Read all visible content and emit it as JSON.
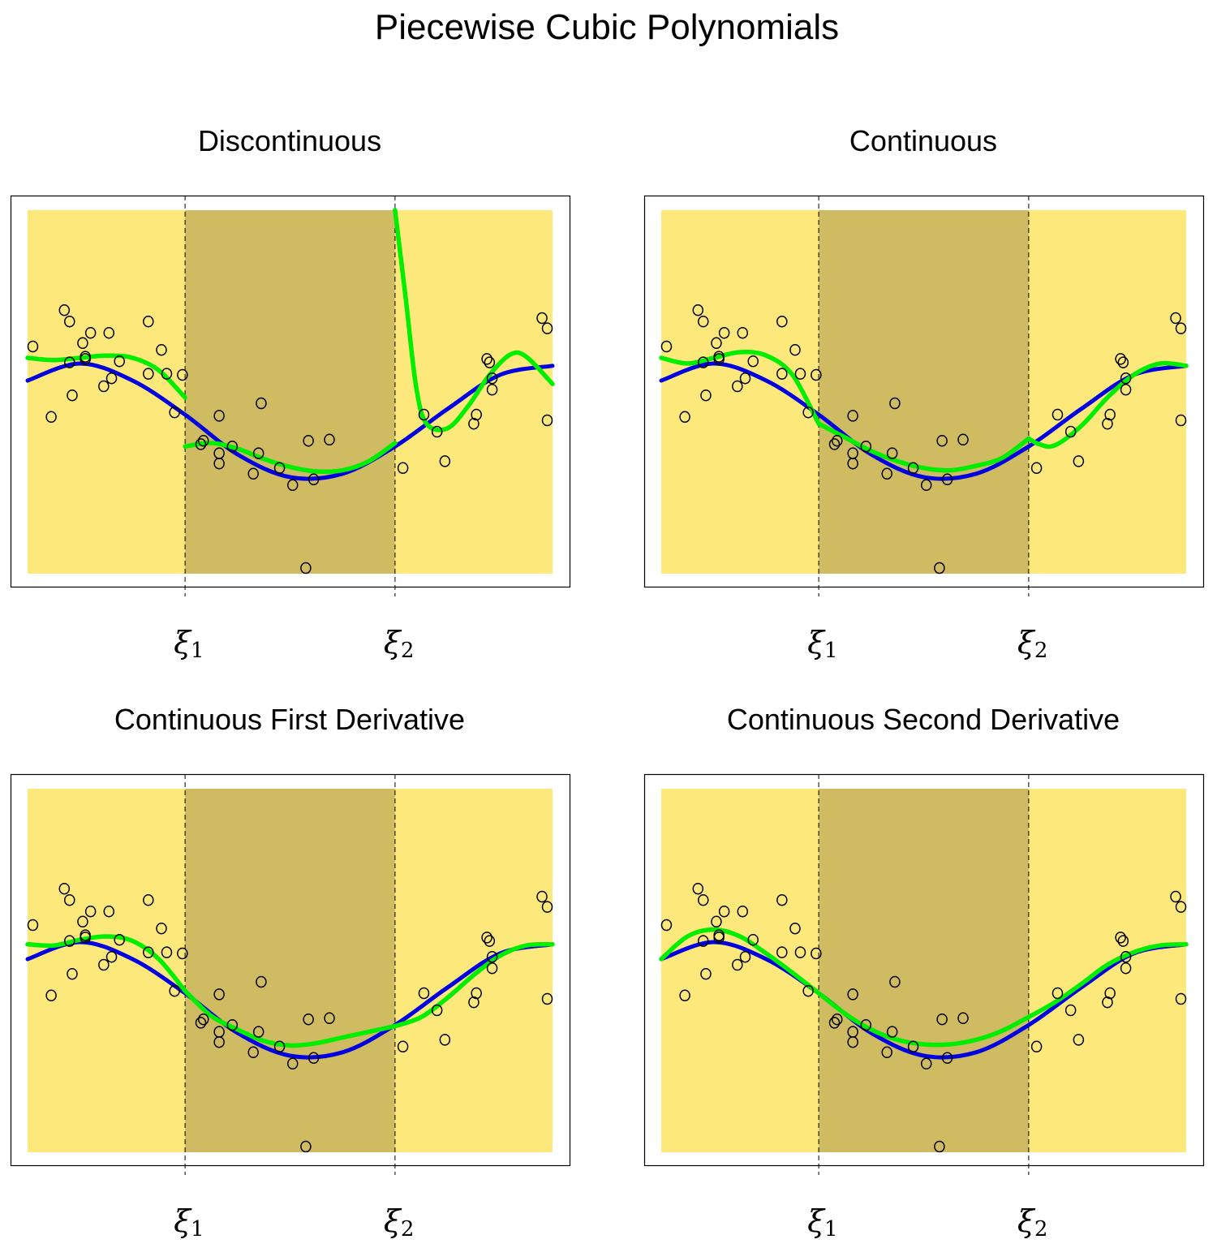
{
  "title": "Piecewise Cubic Polynomials",
  "colors": {
    "outer_region": "#FDE87B",
    "middle_region": "#CFBB62",
    "true_curve": "#0000E0",
    "fitted_curve": "#00EE00",
    "points": "#000000",
    "frame": "#000000"
  },
  "knot_labels": [
    "ξ1",
    "ξ2"
  ],
  "chart_data": [
    {
      "type": "scatter",
      "title": "Discontinuous",
      "xlim": [
        0,
        1
      ],
      "ylim": [
        -1.7,
        1.5
      ],
      "grid": false,
      "knots": [
        0.3,
        0.7
      ],
      "points": [
        [
          0.01,
          0.3
        ],
        [
          0.045,
          -0.32
        ],
        [
          0.07,
          0.62
        ],
        [
          0.08,
          0.52
        ],
        [
          0.08,
          0.16
        ],
        [
          0.085,
          -0.13
        ],
        [
          0.105,
          0.33
        ],
        [
          0.11,
          0.21
        ],
        [
          0.11,
          0.19
        ],
        [
          0.12,
          0.42
        ],
        [
          0.145,
          -0.05
        ],
        [
          0.16,
          0.02
        ],
        [
          0.155,
          0.42
        ],
        [
          0.175,
          0.17
        ],
        [
          0.23,
          0.52
        ],
        [
          0.23,
          0.06
        ],
        [
          0.255,
          0.27
        ],
        [
          0.265,
          0.06
        ],
        [
          0.28,
          -0.28
        ],
        [
          0.295,
          0.05
        ],
        [
          0.33,
          -0.56
        ],
        [
          0.335,
          -0.53
        ],
        [
          0.365,
          -0.31
        ],
        [
          0.365,
          -0.64
        ],
        [
          0.365,
          -0.73
        ],
        [
          0.39,
          -0.58
        ],
        [
          0.44,
          -0.64
        ],
        [
          0.43,
          -0.82
        ],
        [
          0.445,
          -0.2
        ],
        [
          0.48,
          -0.77
        ],
        [
          0.505,
          -0.92
        ],
        [
          0.53,
          -1.65
        ],
        [
          0.535,
          -0.53
        ],
        [
          0.545,
          -0.87
        ],
        [
          0.575,
          -0.52
        ],
        [
          0.715,
          -0.77
        ],
        [
          0.755,
          -0.3
        ],
        [
          0.78,
          -0.45
        ],
        [
          0.795,
          -0.71
        ],
        [
          0.85,
          -0.38
        ],
        [
          0.855,
          -0.3
        ],
        [
          0.875,
          0.19
        ],
        [
          0.88,
          0.16
        ],
        [
          0.885,
          0.02
        ],
        [
          0.885,
          -0.08
        ],
        [
          0.98,
          0.55
        ],
        [
          0.99,
          0.46
        ],
        [
          0.99,
          -0.35
        ]
      ],
      "true_curve": {
        "x": [
          0,
          0.1,
          0.2,
          0.3,
          0.4,
          0.5,
          0.6,
          0.7,
          0.8,
          0.9,
          1.0
        ],
        "y": [
          0,
          0.15,
          0.0,
          -0.3,
          -0.65,
          -0.85,
          -0.82,
          -0.58,
          -0.25,
          0.05,
          0.13
        ]
      },
      "fit_segments": [
        {
          "x": [
            0,
            0.05,
            0.1,
            0.15,
            0.2,
            0.25,
            0.3
          ],
          "y": [
            0.2,
            0.18,
            0.2,
            0.22,
            0.2,
            0.09,
            -0.15
          ]
        },
        {
          "x": [
            0.3,
            0.35,
            0.4,
            0.45,
            0.5,
            0.55,
            0.6,
            0.65,
            0.7
          ],
          "y": [
            -0.58,
            -0.55,
            -0.6,
            -0.69,
            -0.76,
            -0.8,
            -0.79,
            -0.71,
            -0.55
          ]
        },
        {
          "x": [
            0.7,
            0.72,
            0.74,
            0.76,
            0.8,
            0.84,
            0.88,
            0.92,
            0.95,
            1.0
          ],
          "y": [
            1.5,
            0.74,
            -0.05,
            -0.38,
            -0.42,
            -0.22,
            0.05,
            0.23,
            0.21,
            -0.03
          ]
        }
      ]
    },
    {
      "type": "scatter",
      "title": "Continuous",
      "xlim": [
        0,
        1
      ],
      "ylim": [
        -1.7,
        1.5
      ],
      "grid": false,
      "knots": [
        0.3,
        0.7
      ],
      "points": [
        [
          0.01,
          0.3
        ],
        [
          0.045,
          -0.32
        ],
        [
          0.07,
          0.62
        ],
        [
          0.08,
          0.52
        ],
        [
          0.08,
          0.16
        ],
        [
          0.085,
          -0.13
        ],
        [
          0.105,
          0.33
        ],
        [
          0.11,
          0.21
        ],
        [
          0.11,
          0.19
        ],
        [
          0.12,
          0.42
        ],
        [
          0.145,
          -0.05
        ],
        [
          0.16,
          0.02
        ],
        [
          0.155,
          0.42
        ],
        [
          0.175,
          0.17
        ],
        [
          0.23,
          0.52
        ],
        [
          0.23,
          0.06
        ],
        [
          0.255,
          0.27
        ],
        [
          0.265,
          0.06
        ],
        [
          0.28,
          -0.28
        ],
        [
          0.295,
          0.05
        ],
        [
          0.33,
          -0.56
        ],
        [
          0.335,
          -0.53
        ],
        [
          0.365,
          -0.31
        ],
        [
          0.365,
          -0.64
        ],
        [
          0.365,
          -0.73
        ],
        [
          0.39,
          -0.58
        ],
        [
          0.44,
          -0.64
        ],
        [
          0.43,
          -0.82
        ],
        [
          0.445,
          -0.2
        ],
        [
          0.48,
          -0.77
        ],
        [
          0.505,
          -0.92
        ],
        [
          0.53,
          -1.65
        ],
        [
          0.535,
          -0.53
        ],
        [
          0.545,
          -0.87
        ],
        [
          0.575,
          -0.52
        ],
        [
          0.715,
          -0.77
        ],
        [
          0.755,
          -0.3
        ],
        [
          0.78,
          -0.45
        ],
        [
          0.795,
          -0.71
        ],
        [
          0.85,
          -0.38
        ],
        [
          0.855,
          -0.3
        ],
        [
          0.875,
          0.19
        ],
        [
          0.88,
          0.16
        ],
        [
          0.885,
          0.02
        ],
        [
          0.885,
          -0.08
        ],
        [
          0.98,
          0.55
        ],
        [
          0.99,
          0.46
        ],
        [
          0.99,
          -0.35
        ]
      ],
      "true_curve": {
        "x": [
          0,
          0.1,
          0.2,
          0.3,
          0.4,
          0.5,
          0.6,
          0.7,
          0.8,
          0.9,
          1.0
        ],
        "y": [
          0,
          0.15,
          0.0,
          -0.3,
          -0.65,
          -0.85,
          -0.82,
          -0.58,
          -0.25,
          0.05,
          0.13
        ]
      },
      "fit_segments": [
        {
          "x": [
            0,
            0.05,
            0.1,
            0.15,
            0.2,
            0.25,
            0.3
          ],
          "y": [
            0.2,
            0.15,
            0.2,
            0.25,
            0.22,
            0.05,
            -0.38
          ]
        },
        {
          "x": [
            0.3,
            0.35,
            0.4,
            0.45,
            0.5,
            0.55,
            0.6,
            0.65,
            0.7
          ],
          "y": [
            -0.38,
            -0.5,
            -0.62,
            -0.71,
            -0.77,
            -0.79,
            -0.75,
            -0.68,
            -0.51
          ]
        },
        {
          "x": [
            0.7,
            0.72,
            0.75,
            0.8,
            0.85,
            0.9,
            0.95,
            1.0
          ],
          "y": [
            -0.51,
            -0.56,
            -0.57,
            -0.4,
            -0.15,
            0.05,
            0.15,
            0.13
          ]
        }
      ]
    },
    {
      "type": "scatter",
      "title": "Continuous First Derivative",
      "xlim": [
        0,
        1
      ],
      "ylim": [
        -1.7,
        1.5
      ],
      "grid": false,
      "knots": [
        0.3,
        0.7
      ],
      "points": [
        [
          0.01,
          0.3
        ],
        [
          0.045,
          -0.32
        ],
        [
          0.07,
          0.62
        ],
        [
          0.08,
          0.52
        ],
        [
          0.08,
          0.16
        ],
        [
          0.085,
          -0.13
        ],
        [
          0.105,
          0.33
        ],
        [
          0.11,
          0.21
        ],
        [
          0.11,
          0.19
        ],
        [
          0.12,
          0.42
        ],
        [
          0.145,
          -0.05
        ],
        [
          0.16,
          0.02
        ],
        [
          0.155,
          0.42
        ],
        [
          0.175,
          0.17
        ],
        [
          0.23,
          0.52
        ],
        [
          0.23,
          0.06
        ],
        [
          0.255,
          0.27
        ],
        [
          0.265,
          0.06
        ],
        [
          0.28,
          -0.28
        ],
        [
          0.295,
          0.05
        ],
        [
          0.33,
          -0.56
        ],
        [
          0.335,
          -0.53
        ],
        [
          0.365,
          -0.31
        ],
        [
          0.365,
          -0.64
        ],
        [
          0.365,
          -0.73
        ],
        [
          0.39,
          -0.58
        ],
        [
          0.44,
          -0.64
        ],
        [
          0.43,
          -0.82
        ],
        [
          0.445,
          -0.2
        ],
        [
          0.48,
          -0.77
        ],
        [
          0.505,
          -0.92
        ],
        [
          0.53,
          -1.65
        ],
        [
          0.535,
          -0.53
        ],
        [
          0.545,
          -0.87
        ],
        [
          0.575,
          -0.52
        ],
        [
          0.715,
          -0.77
        ],
        [
          0.755,
          -0.3
        ],
        [
          0.78,
          -0.45
        ],
        [
          0.795,
          -0.71
        ],
        [
          0.85,
          -0.38
        ],
        [
          0.855,
          -0.3
        ],
        [
          0.875,
          0.19
        ],
        [
          0.88,
          0.16
        ],
        [
          0.885,
          0.02
        ],
        [
          0.885,
          -0.08
        ],
        [
          0.98,
          0.55
        ],
        [
          0.99,
          0.46
        ],
        [
          0.99,
          -0.35
        ]
      ],
      "true_curve": {
        "x": [
          0,
          0.1,
          0.2,
          0.3,
          0.4,
          0.5,
          0.6,
          0.7,
          0.8,
          0.9,
          1.0
        ],
        "y": [
          0,
          0.15,
          0.0,
          -0.3,
          -0.65,
          -0.85,
          -0.82,
          -0.58,
          -0.25,
          0.05,
          0.13
        ]
      },
      "fit_segments": [
        {
          "x": [
            0,
            0.05,
            0.1,
            0.15,
            0.2,
            0.25,
            0.3
          ],
          "y": [
            0.13,
            0.12,
            0.17,
            0.2,
            0.16,
            0.0,
            -0.28
          ]
        },
        {
          "x": [
            0.3,
            0.35,
            0.4,
            0.45,
            0.5,
            0.55,
            0.6,
            0.65,
            0.7
          ],
          "y": [
            -0.28,
            -0.5,
            -0.62,
            -0.72,
            -0.76,
            -0.74,
            -0.69,
            -0.64,
            -0.59
          ]
        },
        {
          "x": [
            0.7,
            0.75,
            0.8,
            0.85,
            0.9,
            0.95,
            1.0
          ],
          "y": [
            -0.59,
            -0.51,
            -0.34,
            -0.14,
            0.03,
            0.12,
            0.13
          ]
        }
      ]
    },
    {
      "type": "scatter",
      "title": "Continuous Second Derivative",
      "xlim": [
        0,
        1
      ],
      "ylim": [
        -1.7,
        1.5
      ],
      "grid": false,
      "knots": [
        0.3,
        0.7
      ],
      "points": [
        [
          0.01,
          0.3
        ],
        [
          0.045,
          -0.32
        ],
        [
          0.07,
          0.62
        ],
        [
          0.08,
          0.52
        ],
        [
          0.08,
          0.16
        ],
        [
          0.085,
          -0.13
        ],
        [
          0.105,
          0.33
        ],
        [
          0.11,
          0.21
        ],
        [
          0.11,
          0.19
        ],
        [
          0.12,
          0.42
        ],
        [
          0.145,
          -0.05
        ],
        [
          0.16,
          0.02
        ],
        [
          0.155,
          0.42
        ],
        [
          0.175,
          0.17
        ],
        [
          0.23,
          0.52
        ],
        [
          0.23,
          0.06
        ],
        [
          0.255,
          0.27
        ],
        [
          0.265,
          0.06
        ],
        [
          0.28,
          -0.28
        ],
        [
          0.295,
          0.05
        ],
        [
          0.33,
          -0.56
        ],
        [
          0.335,
          -0.53
        ],
        [
          0.365,
          -0.31
        ],
        [
          0.365,
          -0.64
        ],
        [
          0.365,
          -0.73
        ],
        [
          0.39,
          -0.58
        ],
        [
          0.44,
          -0.64
        ],
        [
          0.43,
          -0.82
        ],
        [
          0.445,
          -0.2
        ],
        [
          0.48,
          -0.77
        ],
        [
          0.505,
          -0.92
        ],
        [
          0.53,
          -1.65
        ],
        [
          0.535,
          -0.53
        ],
        [
          0.545,
          -0.87
        ],
        [
          0.575,
          -0.52
        ],
        [
          0.715,
          -0.77
        ],
        [
          0.755,
          -0.3
        ],
        [
          0.78,
          -0.45
        ],
        [
          0.795,
          -0.71
        ],
        [
          0.85,
          -0.38
        ],
        [
          0.855,
          -0.3
        ],
        [
          0.875,
          0.19
        ],
        [
          0.88,
          0.16
        ],
        [
          0.885,
          0.02
        ],
        [
          0.885,
          -0.08
        ],
        [
          0.98,
          0.55
        ],
        [
          0.99,
          0.46
        ],
        [
          0.99,
          -0.35
        ]
      ],
      "true_curve": {
        "x": [
          0,
          0.1,
          0.2,
          0.3,
          0.4,
          0.5,
          0.6,
          0.7,
          0.8,
          0.9,
          1.0
        ],
        "y": [
          0,
          0.15,
          0.0,
          -0.3,
          -0.65,
          -0.85,
          -0.82,
          -0.58,
          -0.25,
          0.05,
          0.13
        ]
      },
      "fit_segments": [
        {
          "x": [
            0,
            0.05,
            0.1,
            0.15,
            0.2,
            0.25,
            0.3
          ],
          "y": [
            0.0,
            0.2,
            0.26,
            0.2,
            0.05,
            -0.12,
            -0.3
          ]
        },
        {
          "x": [
            0.3,
            0.35,
            0.4,
            0.45,
            0.5,
            0.55,
            0.6,
            0.65,
            0.7
          ],
          "y": [
            -0.3,
            -0.48,
            -0.62,
            -0.71,
            -0.75,
            -0.75,
            -0.71,
            -0.63,
            -0.51
          ]
        },
        {
          "x": [
            0.7,
            0.75,
            0.8,
            0.85,
            0.9,
            0.95,
            1.0
          ],
          "y": [
            -0.51,
            -0.38,
            -0.22,
            -0.05,
            0.06,
            0.12,
            0.13
          ]
        }
      ]
    }
  ]
}
